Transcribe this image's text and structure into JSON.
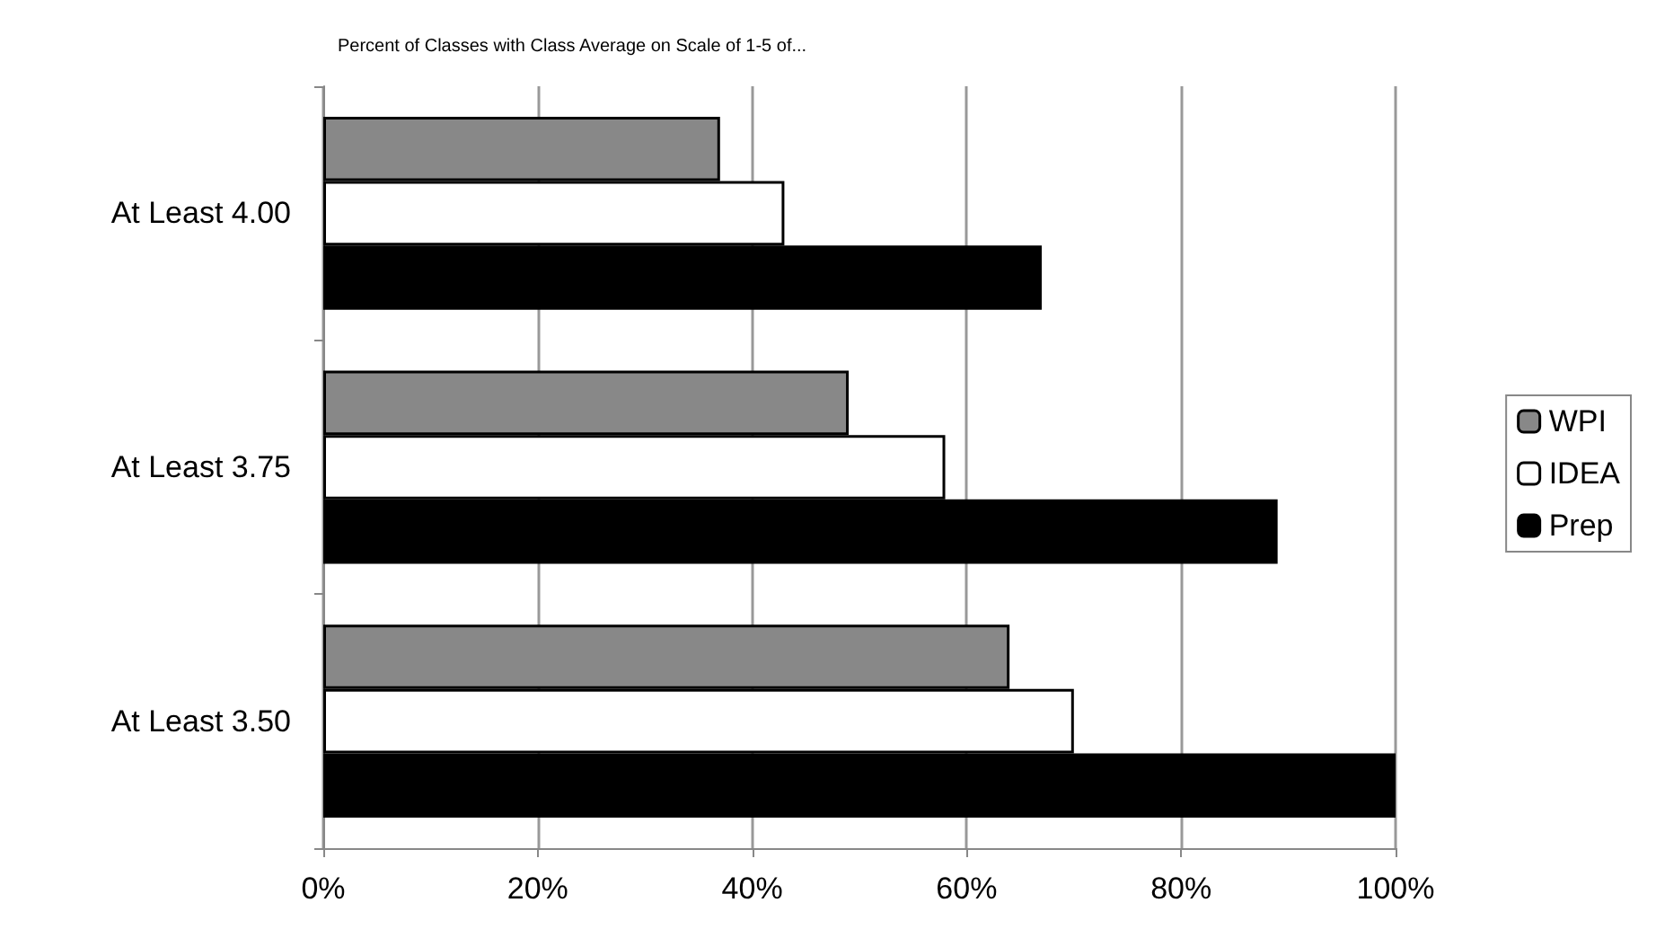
{
  "chart_data": {
    "type": "bar",
    "orientation": "horizontal",
    "title": "Percent of Classes with Class Average on Scale of 1-5 of...",
    "categories": [
      "At Least 4.00",
      "At Least 3.75",
      "At Least 3.50"
    ],
    "series": [
      {
        "name": "WPI",
        "color": "#888888",
        "values": [
          37,
          49,
          64
        ]
      },
      {
        "name": "IDEA",
        "color": "#ffffff",
        "values": [
          43,
          58,
          70
        ]
      },
      {
        "name": "Prep",
        "color": "#000000",
        "values": [
          67,
          89,
          100
        ]
      }
    ],
    "xlim": [
      0,
      100
    ],
    "xticks": [
      {
        "value": 0,
        "label": "0%"
      },
      {
        "value": 20,
        "label": "20%"
      },
      {
        "value": 40,
        "label": "40%"
      },
      {
        "value": 60,
        "label": "60%"
      },
      {
        "value": 80,
        "label": "80%"
      },
      {
        "value": 100,
        "label": "100%"
      }
    ],
    "grid": "x",
    "legend": "right"
  }
}
